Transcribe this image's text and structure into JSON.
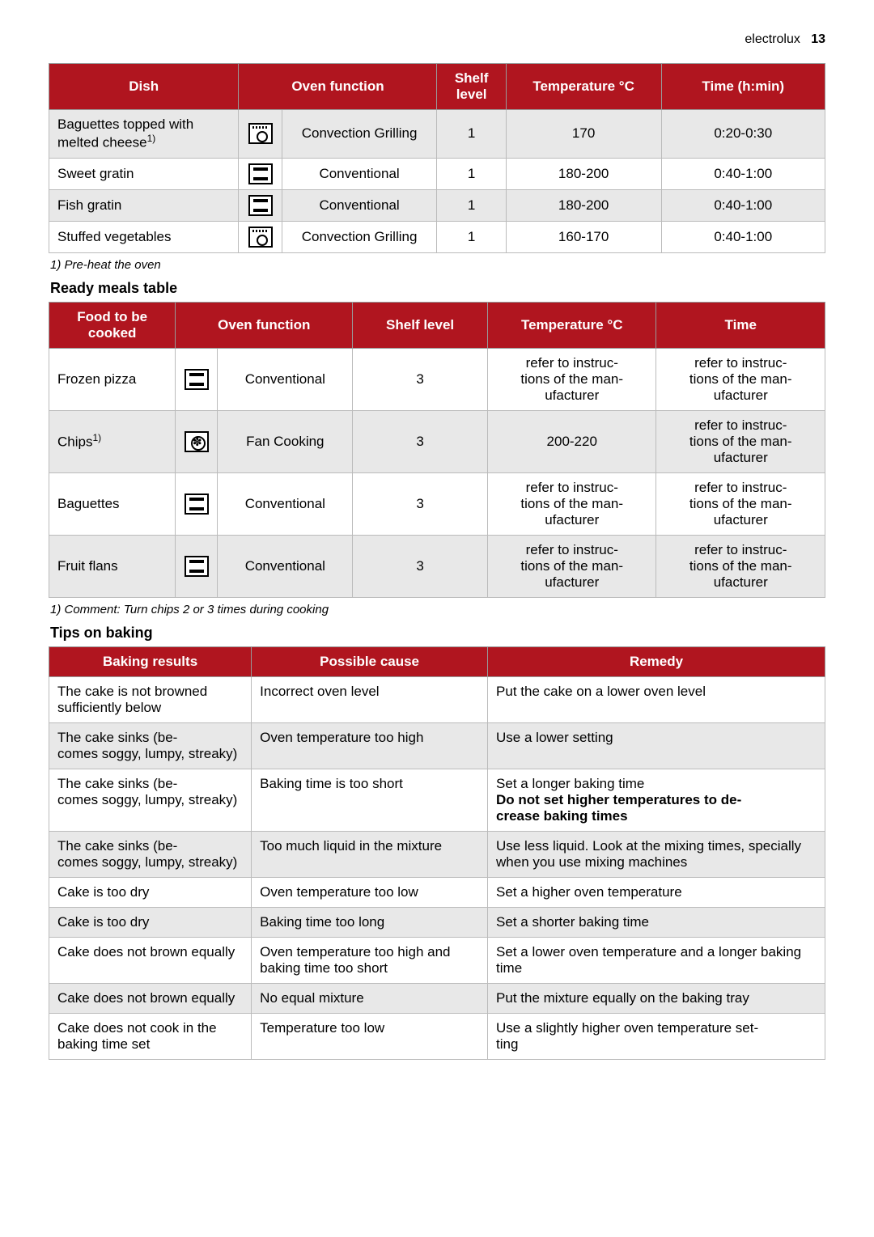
{
  "header": {
    "brand": "electrolux",
    "pagenum": "13"
  },
  "table1": {
    "headers": {
      "dish": "Dish",
      "func": "Oven function",
      "shelf": "Shelf level",
      "temp": "Temperature °C",
      "time": "Time (h:min)"
    },
    "rows": [
      {
        "dish": "Baguettes topped with melted cheese",
        "sup": "1)",
        "icon": "conv-grill",
        "func": "Convection Grilling",
        "shelf": "1",
        "temp": "170",
        "time": "0:20-0:30",
        "shade": true
      },
      {
        "dish": "Sweet gratin",
        "sup": "",
        "icon": "conventional",
        "func": "Conventional",
        "shelf": "1",
        "temp": "180-200",
        "time": "0:40-1:00",
        "shade": false
      },
      {
        "dish": "Fish gratin",
        "sup": "",
        "icon": "conventional",
        "func": "Conventional",
        "shelf": "1",
        "temp": "180-200",
        "time": "0:40-1:00",
        "shade": true
      },
      {
        "dish": "Stuffed vegetables",
        "sup": "",
        "icon": "conv-grill",
        "func": "Convection Grilling",
        "shelf": "1",
        "temp": "160-170",
        "time": "0:40-1:00",
        "shade": false
      }
    ],
    "footnote": "1) Pre-heat the oven"
  },
  "section2_title": "Ready meals table",
  "table2": {
    "headers": {
      "food": "Food to be cooked",
      "func": "Oven function",
      "shelf": "Shelf level",
      "temp": "Temperature °C",
      "time": "Time"
    },
    "refer": "refer to instruc-\ntions of the man-\nufacturer",
    "rows": [
      {
        "food": "Frozen pizza",
        "sup": "",
        "icon": "conventional",
        "func": "Conventional",
        "shelf": "3",
        "temp": "REFER",
        "time": "REFER",
        "shade": false
      },
      {
        "food": "Chips",
        "sup": "1)",
        "icon": "fan",
        "func": "Fan Cooking",
        "shelf": "3",
        "temp": "200-220",
        "time": "REFER",
        "shade": true
      },
      {
        "food": "Baguettes",
        "sup": "",
        "icon": "conventional",
        "func": "Conventional",
        "shelf": "3",
        "temp": "REFER",
        "time": "REFER",
        "shade": false
      },
      {
        "food": "Fruit flans",
        "sup": "",
        "icon": "conventional",
        "func": "Conventional",
        "shelf": "3",
        "temp": "REFER",
        "time": "REFER",
        "shade": true
      }
    ],
    "footnote": "1) Comment: Turn chips 2 or 3 times during cooking"
  },
  "section3_title": "Tips on baking",
  "table3": {
    "headers": {
      "result": "Baking results",
      "cause": "Possible cause",
      "remedy": "Remedy"
    },
    "rows": [
      {
        "result": "The cake is not browned sufficiently below",
        "cause": "Incorrect oven level",
        "remedy": "Put the cake on a lower oven level",
        "shade": false
      },
      {
        "result": "The cake sinks (be-\ncomes soggy, lumpy, streaky)",
        "cause": "Oven temperature too high",
        "remedy": "Use a lower setting",
        "shade": true
      },
      {
        "result": "The cake sinks (be-\ncomes soggy, lumpy, streaky)",
        "cause": "Baking time is too short",
        "remedy_pre": "Set a longer baking time",
        "remedy_bold": "Do not set higher temperatures to de-\ncrease baking times",
        "shade": false
      },
      {
        "result": "The cake sinks (be-\ncomes soggy, lumpy, streaky)",
        "cause": "Too much liquid in the mixture",
        "remedy": "Use less liquid. Look at the mixing times, specially when you use mixing machines",
        "shade": true
      },
      {
        "result": "Cake is too dry",
        "cause": "Oven temperature too low",
        "remedy": "Set a higher oven temperature",
        "shade": false
      },
      {
        "result": "Cake is too dry",
        "cause": "Baking time too long",
        "remedy": "Set a shorter baking time",
        "shade": true
      },
      {
        "result": "Cake does not brown equally",
        "cause": "Oven temperature too high and baking time too short",
        "remedy": "Set a lower oven temperature and a longer baking time",
        "shade": false
      },
      {
        "result": "Cake does not brown equally",
        "cause": "No equal mixture",
        "remedy": "Put the mixture equally on the baking tray",
        "shade": true
      },
      {
        "result": "Cake does not cook in the baking time set",
        "cause": "Temperature too low",
        "remedy": "Use a slightly higher oven temperature set-\nting",
        "shade": false
      }
    ]
  }
}
